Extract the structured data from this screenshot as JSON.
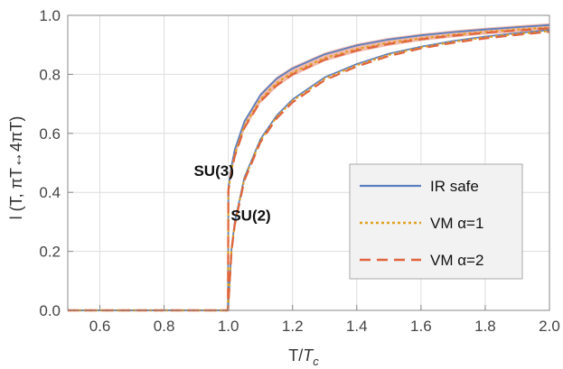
{
  "chart_data": {
    "type": "line",
    "xlabel_main": "T/",
    "xlabel_sub_base": "T",
    "xlabel_sub": "c",
    "ylabel": "l (T, πT↔4πT)",
    "xlim": [
      0.5,
      2.0
    ],
    "ylim": [
      0.0,
      1.0
    ],
    "x_ticks": [
      "0.6",
      "0.8",
      "1.0",
      "1.2",
      "1.4",
      "1.6",
      "1.8",
      "2.0"
    ],
    "y_ticks": [
      "0.0",
      "0.2",
      "0.4",
      "0.6",
      "0.8",
      "1.0"
    ],
    "grid": true,
    "legend_position": "bottom-right",
    "colors": {
      "ir_safe": "#5b7fbf",
      "vm_alpha1": "#e0a020",
      "vm_alpha2": "#e0643c",
      "band": "#e8806a"
    },
    "annotations": [
      {
        "text": "SU(3)",
        "x": 0.955,
        "y": 0.455
      },
      {
        "text": "SU(2)",
        "x": 1.07,
        "y": 0.305
      }
    ],
    "legend": [
      {
        "label": "IR safe",
        "style": "solid"
      },
      {
        "label": "VM α=1",
        "style": "dotted"
      },
      {
        "label": "VM α=2",
        "style": "dashed"
      }
    ],
    "series": [
      {
        "name": "IR safe",
        "group": "SU(3)",
        "style": "solid",
        "x": [
          0.5,
          0.999,
          1.0,
          1.01,
          1.02,
          1.05,
          1.1,
          1.15,
          1.2,
          1.3,
          1.4,
          1.5,
          1.6,
          1.7,
          1.8,
          1.9,
          2.0
        ],
        "y": [
          0.0,
          0.0,
          0.415,
          0.49,
          0.545,
          0.64,
          0.73,
          0.785,
          0.82,
          0.868,
          0.898,
          0.918,
          0.932,
          0.943,
          0.952,
          0.96,
          0.967
        ]
      },
      {
        "name": "VM α=1",
        "group": "SU(3)",
        "style": "dotted",
        "x": [
          0.5,
          0.999,
          1.0,
          1.01,
          1.02,
          1.05,
          1.1,
          1.15,
          1.2,
          1.3,
          1.4,
          1.5,
          1.6,
          1.7,
          1.8,
          1.9,
          2.0
        ],
        "y": [
          0.0,
          0.0,
          0.41,
          0.475,
          0.53,
          0.625,
          0.715,
          0.77,
          0.806,
          0.855,
          0.886,
          0.907,
          0.922,
          0.934,
          0.944,
          0.952,
          0.959
        ]
      },
      {
        "name": "VM α=2",
        "group": "SU(3)",
        "style": "dashed",
        "x": [
          0.5,
          0.999,
          1.0,
          1.01,
          1.02,
          1.05,
          1.1,
          1.15,
          1.2,
          1.3,
          1.4,
          1.5,
          1.6,
          1.7,
          1.8,
          1.9,
          2.0
        ],
        "y": [
          0.0,
          0.0,
          0.405,
          0.47,
          0.522,
          0.618,
          0.708,
          0.762,
          0.8,
          0.85,
          0.881,
          0.903,
          0.919,
          0.931,
          0.941,
          0.949,
          0.956
        ]
      },
      {
        "name": "IR safe",
        "group": "SU(2)",
        "style": "solid",
        "x": [
          0.5,
          0.999,
          1.0,
          1.01,
          1.02,
          1.05,
          1.1,
          1.15,
          1.2,
          1.3,
          1.4,
          1.5,
          1.6,
          1.7,
          1.8,
          1.9,
          2.0
        ],
        "y": [
          0.0,
          0.0,
          0.02,
          0.21,
          0.3,
          0.45,
          0.58,
          0.66,
          0.715,
          0.79,
          0.835,
          0.87,
          0.894,
          0.913,
          0.928,
          0.94,
          0.95
        ]
      },
      {
        "name": "VM α=1",
        "group": "SU(2)",
        "style": "dotted",
        "x": [
          0.5,
          0.999,
          1.0,
          1.01,
          1.02,
          1.05,
          1.1,
          1.15,
          1.2,
          1.3,
          1.4,
          1.5,
          1.6,
          1.7,
          1.8,
          1.9,
          2.0
        ],
        "y": [
          0.0,
          0.0,
          0.02,
          0.205,
          0.295,
          0.445,
          0.575,
          0.655,
          0.71,
          0.785,
          0.831,
          0.866,
          0.891,
          0.91,
          0.925,
          0.937,
          0.947
        ]
      },
      {
        "name": "VM α=2",
        "group": "SU(2)",
        "style": "dashed",
        "x": [
          0.5,
          0.999,
          1.0,
          1.01,
          1.02,
          1.05,
          1.1,
          1.15,
          1.2,
          1.3,
          1.4,
          1.5,
          1.6,
          1.7,
          1.8,
          1.9,
          2.0
        ],
        "y": [
          0.0,
          0.0,
          0.02,
          0.2,
          0.29,
          0.44,
          0.57,
          0.65,
          0.705,
          0.78,
          0.827,
          0.862,
          0.888,
          0.907,
          0.922,
          0.934,
          0.944
        ]
      }
    ]
  }
}
